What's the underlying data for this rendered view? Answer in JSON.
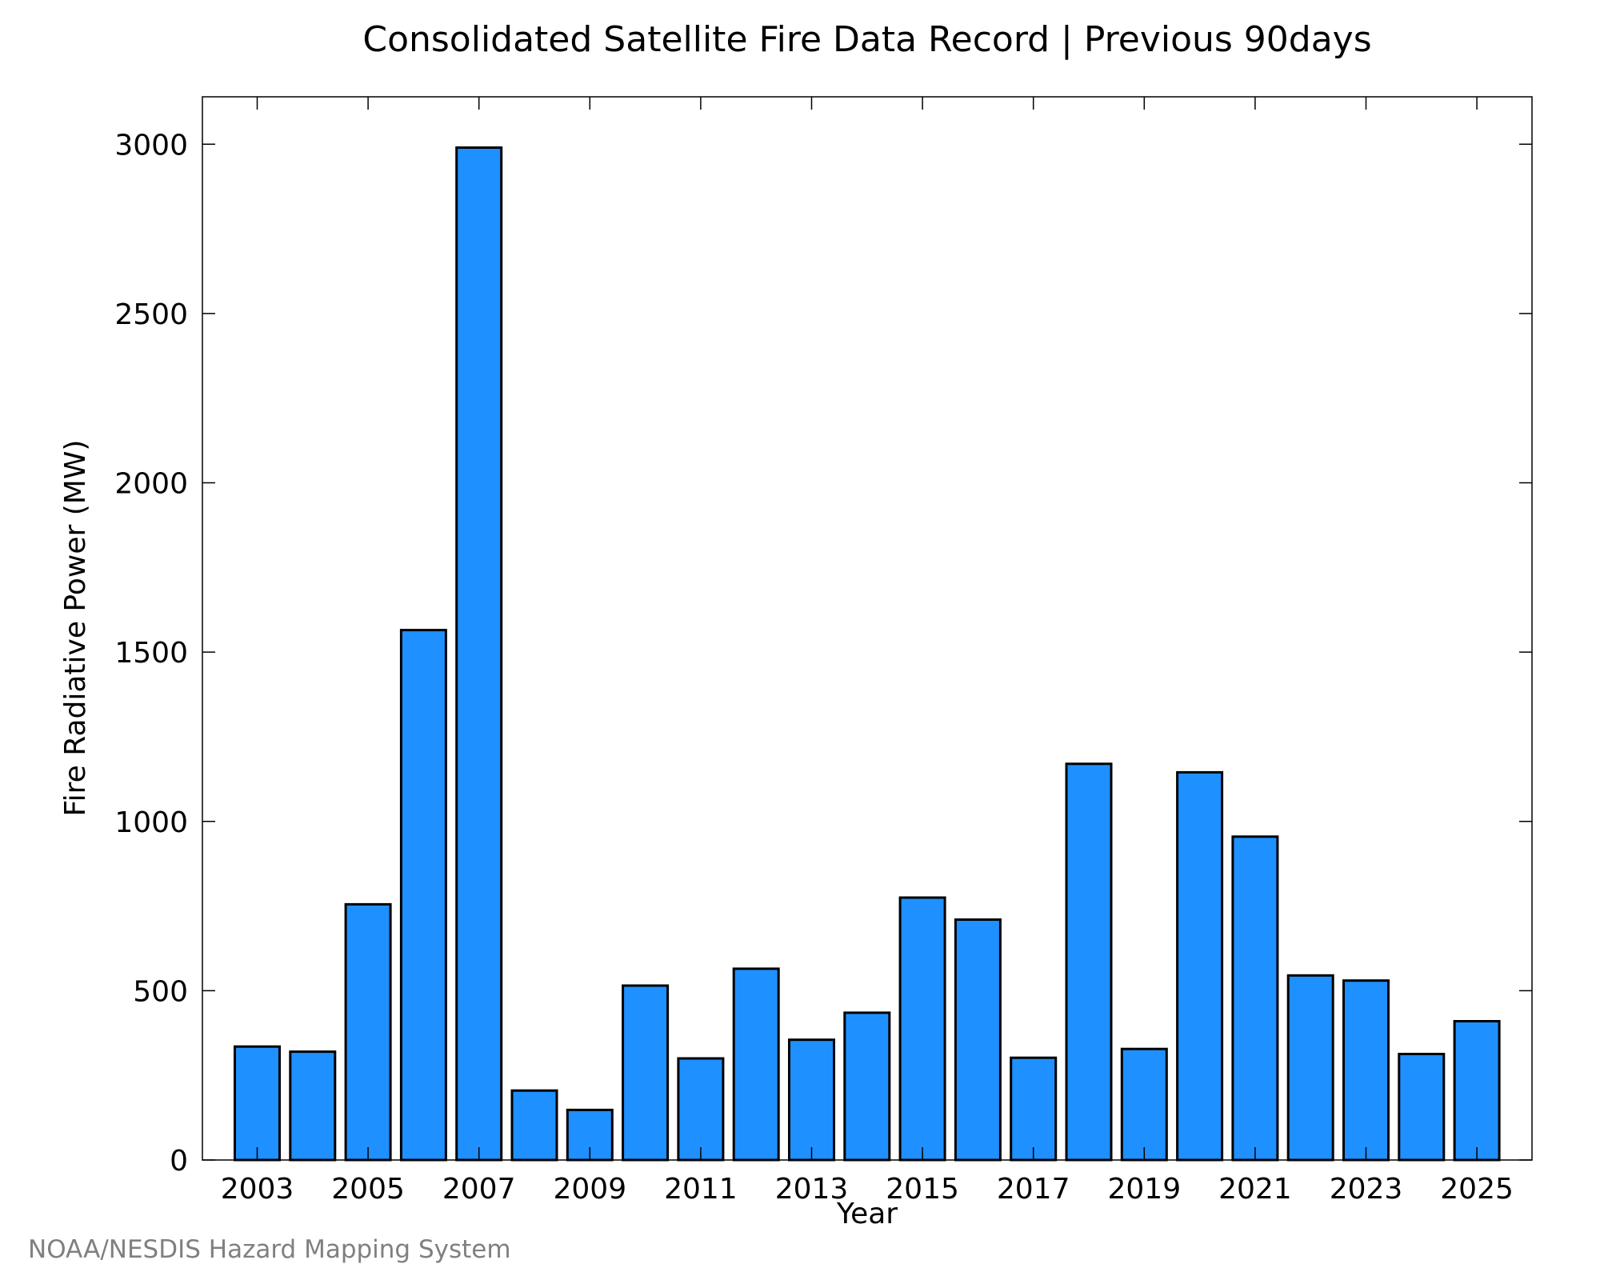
{
  "credit": "NOAA/NESDIS Hazard Mapping System",
  "chart_data": {
    "type": "bar",
    "title": "Consolidated Satellite Fire Data Record | Previous 90days",
    "xlabel": "Year",
    "ylabel": "Fire Radiative Power (MW)",
    "categories": [
      "2003",
      "2004",
      "2005",
      "2006",
      "2007",
      "2008",
      "2009",
      "2010",
      "2011",
      "2012",
      "2013",
      "2014",
      "2015",
      "2016",
      "2017",
      "2018",
      "2019",
      "2020",
      "2021",
      "2022",
      "2023",
      "2024",
      "2025"
    ],
    "values": [
      335,
      320,
      755,
      1565,
      2990,
      205,
      148,
      515,
      300,
      565,
      355,
      435,
      775,
      710,
      302,
      1170,
      328,
      1145,
      955,
      545,
      530,
      313,
      410
    ],
    "x_tick_labels": [
      "2003",
      "2005",
      "2007",
      "2009",
      "2011",
      "2013",
      "2015",
      "2017",
      "2019",
      "2021",
      "2023",
      "2025"
    ],
    "y_ticks": [
      0,
      500,
      1000,
      1500,
      2000,
      2500,
      3000
    ],
    "ylim": [
      0,
      3140
    ],
    "bar_color": "#1e90ff",
    "bar_edge_color": "#000000",
    "grid": false,
    "legend": "none"
  }
}
